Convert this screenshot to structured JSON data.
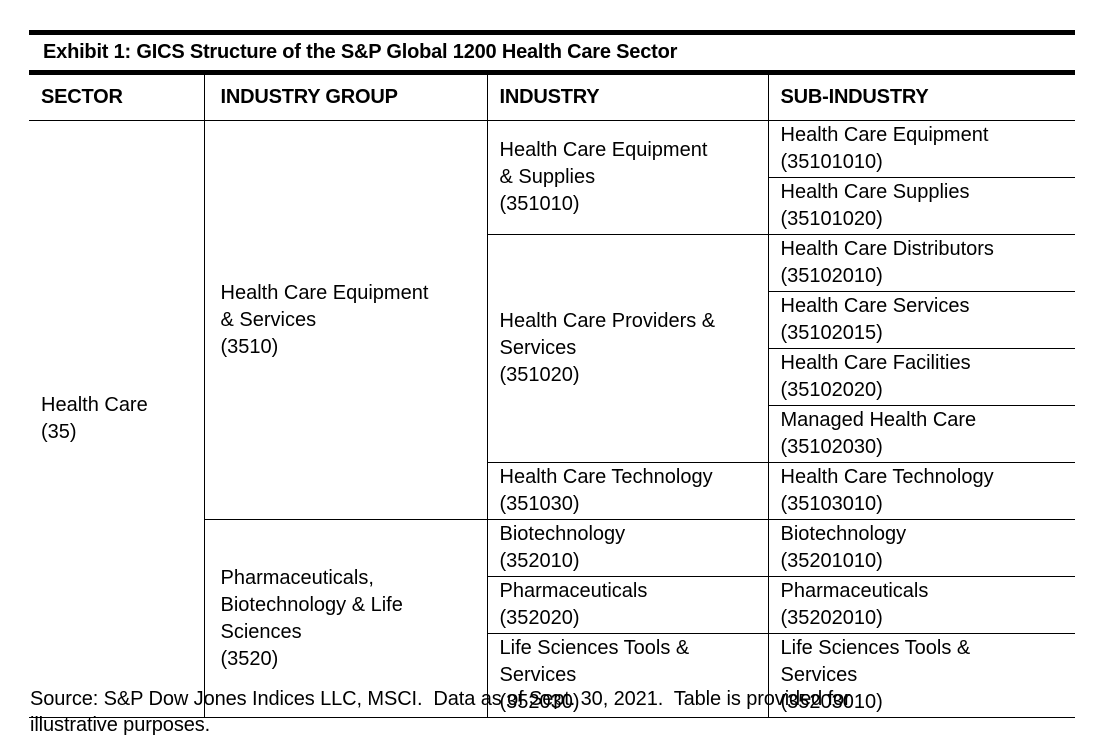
{
  "exhibit": {
    "title": "Exhibit 1: GICS Structure of the S&P Global 1200 Health Care Sector",
    "columns": [
      "SECTOR",
      "INDUSTRY GROUP",
      "INDUSTRY",
      "SUB-INDUSTRY"
    ],
    "table": {
      "sector": {
        "lines": [
          "Health Care",
          "(35)"
        ]
      },
      "groups": [
        {
          "lines": [
            "Health Care Equipment",
            "& Services",
            "(3510)"
          ],
          "industries": [
            {
              "lines": [
                "Health Care Equipment",
                "& Supplies",
                "(351010)"
              ],
              "subs": [
                {
                  "lines": [
                    "Health Care Equipment",
                    "(35101010)"
                  ]
                },
                {
                  "lines": [
                    "Health Care Supplies",
                    "(35101020)"
                  ]
                }
              ]
            },
            {
              "lines": [
                "Health Care Providers &",
                "Services",
                "(351020)"
              ],
              "subs": [
                {
                  "lines": [
                    "Health Care Distributors",
                    "(35102010)"
                  ]
                },
                {
                  "lines": [
                    "Health Care Services",
                    "(35102015)"
                  ]
                },
                {
                  "lines": [
                    "Health Care Facilities",
                    "(35102020)"
                  ]
                },
                {
                  "lines": [
                    "Managed Health Care",
                    "(35102030)"
                  ]
                }
              ]
            },
            {
              "lines": [
                "Health Care Technology",
                "(351030)"
              ],
              "subs": [
                {
                  "lines": [
                    "Health Care Technology",
                    "(35103010)"
                  ]
                }
              ]
            }
          ]
        },
        {
          "lines": [
            "Pharmaceuticals,",
            "Biotechnology & Life",
            "Sciences",
            "(3520)"
          ],
          "industries": [
            {
              "lines": [
                "Biotechnology",
                "(352010)"
              ],
              "subs": [
                {
                  "lines": [
                    "Biotechnology",
                    "(35201010)"
                  ]
                }
              ]
            },
            {
              "lines": [
                "Pharmaceuticals",
                "(352020)"
              ],
              "subs": [
                {
                  "lines": [
                    "Pharmaceuticals",
                    "(35202010)"
                  ]
                }
              ]
            },
            {
              "lines": [
                "Life Sciences Tools &",
                "Services",
                "(352030)"
              ],
              "subs": [
                {
                  "lines": [
                    "Life Sciences Tools &",
                    "Services",
                    "(35203010)"
                  ]
                }
              ]
            }
          ]
        }
      ]
    },
    "source_lines": [
      "Source: S&P Dow Jones Indices LLC, MSCI.  Data as of Sept. 30, 2021.  Table is provided for",
      "illustrative purposes."
    ]
  }
}
